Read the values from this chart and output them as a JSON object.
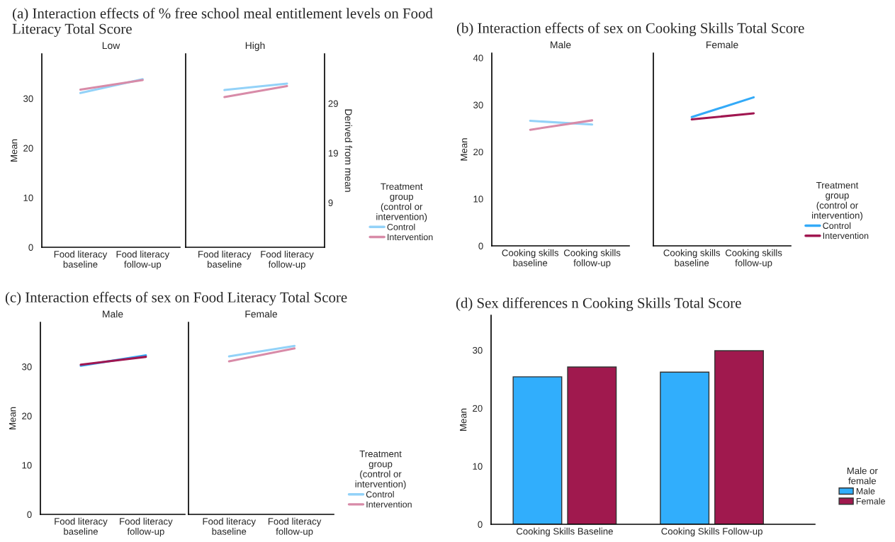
{
  "chart_data": [
    {
      "type": "line",
      "title": "(a) Interaction effects of % free school meal entitlement levels on Food Literacy Total Score",
      "subtitle": "Low",
      "ylabel": "Mean",
      "categories": [
        "Food literacy\nbaseline",
        "Food literacy\nfollow-up"
      ],
      "series": [
        {
          "color": "#93d2f8",
          "values": [
            31.1,
            33.9
          ]
        },
        {
          "color": "#d88ba8",
          "values": [
            31.8,
            33.7
          ]
        }
      ],
      "ylim": [
        0,
        39
      ],
      "yticks": [
        0,
        10,
        20,
        30
      ],
      "grid": false,
      "line_style": "solid"
    },
    {
      "type": "line",
      "subtitle": "High",
      "categories": [
        "Food literacy\nbaseline",
        "Food literacy\nfollow-up"
      ],
      "series": [
        {
          "name": "Control",
          "color": "#93d2f8",
          "values": [
            31.7,
            33.0
          ]
        },
        {
          "name": "Intervention",
          "color": "#d88ba8",
          "values": [
            30.3,
            32.5
          ]
        }
      ],
      "ylim": [
        0,
        39
      ],
      "yticks": [
        0,
        10,
        20,
        30
      ],
      "y2label": "Derived from mean",
      "y2lim": [
        0,
        39
      ],
      "y2ticks": [
        {
          "value": 9,
          "label": "9"
        },
        {
          "value": 19,
          "label": "19"
        },
        {
          "value": 29,
          "label": "29"
        }
      ],
      "tick_labels": "x",
      "grid": false,
      "line_style": "solid",
      "legend": "right",
      "legend_title": "Treatment\ngroup\n(control or\nintervention)"
    },
    {
      "type": "line",
      "title": "(b) Interaction effects of sex on Cooking Skills Total Score",
      "subtitle": "Male",
      "ylabel": "Mean",
      "categories": [
        "Cooking skills\nbaseline",
        "Cooking skills\nfollow-up"
      ],
      "series": [
        {
          "color": "#93d2f8",
          "values": [
            26.6,
            25.8
          ]
        },
        {
          "color": "#d88ba8",
          "values": [
            24.7,
            26.7
          ]
        }
      ],
      "ylim": [
        0,
        41
      ],
      "yticks": [
        0,
        10,
        20,
        30,
        40
      ],
      "grid": false,
      "line_style": "solid"
    },
    {
      "type": "line",
      "subtitle": "Female",
      "categories": [
        "Cooking skills\nbaseline",
        "Cooking skills\nfollow-up"
      ],
      "series": [
        {
          "name": "Control",
          "color": "#33aaf8",
          "values": [
            27.4,
            31.6
          ]
        },
        {
          "name": "Intervention",
          "color": "#a01650",
          "values": [
            26.9,
            28.2
          ]
        }
      ],
      "ylim": [
        0,
        41
      ],
      "yticks": [
        0,
        10,
        20,
        30,
        40
      ],
      "tick_labels": "x",
      "grid": false,
      "line_style": "solid",
      "legend": "right",
      "legend_title": "Treatment\ngroup\n(control or\nintervention)"
    },
    {
      "type": "line",
      "title": "(c) Interaction effects of sex on Food Literacy Total Score",
      "subtitle": "Male",
      "ylabel": "Mean",
      "categories": [
        "Food literacy\nbaseline",
        "Food literacy\nfollow-up"
      ],
      "series": [
        {
          "color": "#33aaf8",
          "values": [
            30.2,
            32.3
          ]
        },
        {
          "color": "#a01650",
          "values": [
            30.4,
            32.0
          ]
        }
      ],
      "ylim": [
        0,
        39
      ],
      "yticks": [
        0,
        10,
        20,
        30
      ],
      "grid": false,
      "line_style": "solid"
    },
    {
      "type": "line",
      "subtitle": "Female",
      "categories": [
        "Food literacy\nbaseline",
        "Food literacy\nfollow-up"
      ],
      "series": [
        {
          "name": "Control",
          "color": "#93d2f8",
          "values": [
            32.1,
            34.2
          ]
        },
        {
          "name": "Intervention",
          "color": "#d88ba8",
          "values": [
            31.1,
            33.7
          ]
        }
      ],
      "ylim": [
        0,
        39
      ],
      "yticks": [
        0,
        10,
        20,
        30
      ],
      "tick_labels": "x",
      "grid": false,
      "line_style": "solid",
      "legend": "right",
      "legend_title": "Treatment\ngroup\n(control or\nintervention)"
    },
    {
      "type": "bar",
      "title": "(d) Sex differences n Cooking Skills Total Score",
      "ylabel": "Mean",
      "categories": [
        "Cooking Skills Baseline",
        "Cooking Skills Follow-up"
      ],
      "series": [
        {
          "name": "Male",
          "color": "#31aefc",
          "values": [
            25.4,
            26.2
          ]
        },
        {
          "name": "Female",
          "color": "#a0194e",
          "values": [
            27.1,
            29.9
          ]
        }
      ],
      "ylim": [
        0,
        36
      ],
      "yticks": [
        0,
        10,
        20,
        30
      ],
      "grid": false,
      "legend": "right",
      "legend_title": "Male or\nfemale"
    }
  ]
}
